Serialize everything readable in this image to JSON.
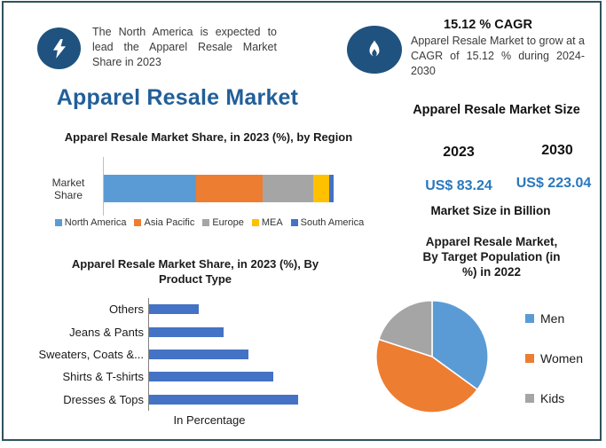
{
  "title": "Apparel Resale Market",
  "highlight": {
    "icon": "lightning-icon",
    "text": "The North America is expected to lead the Apparel Resale Market Share in 2023"
  },
  "cagr_card": {
    "icon": "flame-icon",
    "headline": "15.12 % CAGR",
    "text": "Apparel Resale Market to grow at a CAGR of 15.12 % during 2024-2030"
  },
  "market_size": {
    "title": "Apparel Resale Market Size",
    "years": [
      "2023",
      "2030"
    ],
    "values": [
      "US$ 83.24",
      "US$ 223.04"
    ],
    "note": "Market Size in Billion"
  },
  "colors": {
    "badge_navy": "#1f527e",
    "title_blue": "#215f9a",
    "value_blue": "#2878be",
    "frame_border": "#30535e",
    "product_bar": "#4472C4"
  },
  "chart_data": [
    {
      "type": "bar",
      "variant": "stacked-horizontal",
      "title": "Apparel Resale Market Share, in 2023 (%), by Region",
      "categories": [
        "Market Share"
      ],
      "series": [
        {
          "name": "North America",
          "values": [
            40
          ],
          "color": "#5B9BD5"
        },
        {
          "name": "Asia Pacific",
          "values": [
            29
          ],
          "color": "#ED7D31"
        },
        {
          "name": "Europe",
          "values": [
            22
          ],
          "color": "#A5A5A5"
        },
        {
          "name": "MEA",
          "values": [
            7
          ],
          "color": "#FFC000"
        },
        {
          "name": "South America",
          "values": [
            2
          ],
          "color": "#4472C4"
        }
      ],
      "xlim": [
        0,
        100
      ],
      "grid": false,
      "legend_position": "bottom"
    },
    {
      "type": "bar",
      "variant": "horizontal",
      "title": "Apparel Resale Market Share, in 2023 (%), By Product Type",
      "categories": [
        "Others",
        "Jeans & Pants",
        "Sweaters, Coats &...",
        "Shirts & T-shirts",
        "Dresses & Tops"
      ],
      "values": [
        10,
        15,
        20,
        25,
        30
      ],
      "xlabel": "In Percentage",
      "bar_color": "#4472C4",
      "xlim": [
        0,
        32
      ],
      "grid": false
    },
    {
      "type": "pie",
      "title": "Apparel Resale Market, By Target Population (in %) in 2022",
      "labels": [
        "Men",
        "Women",
        "Kids"
      ],
      "values": [
        35,
        45,
        20
      ],
      "colors": [
        "#5B9BD5",
        "#ED7D31",
        "#A5A5A5"
      ],
      "legend_position": "right"
    }
  ]
}
